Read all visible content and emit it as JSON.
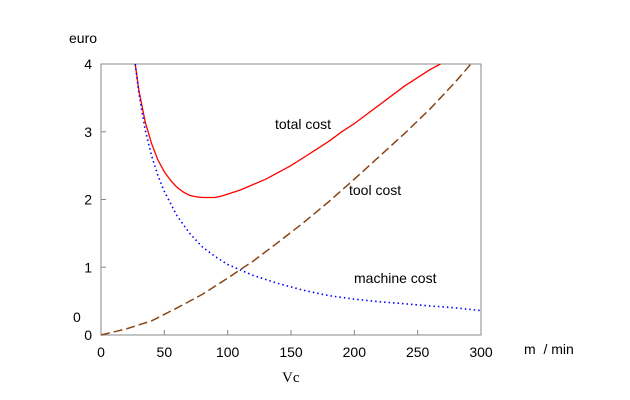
{
  "chart_data": {
    "type": "line",
    "ylabel": "euro",
    "xlabel": "m  / min",
    "xvar": "Vc",
    "stray_label": "0",
    "xlim": [
      0,
      300
    ],
    "ylim": [
      0,
      4
    ],
    "x_ticks": [
      0,
      50,
      100,
      150,
      200,
      250,
      300
    ],
    "y_ticks": [
      0,
      1,
      2,
      3,
      4
    ],
    "grid": false,
    "series": [
      {
        "name": "total cost",
        "color": "#ff0000",
        "style": "solid",
        "x": [
          27,
          30,
          35,
          40,
          45,
          50,
          55,
          60,
          65,
          70,
          75,
          80,
          85,
          90,
          95,
          100,
          110,
          120,
          130,
          140,
          150,
          160,
          170,
          180,
          190,
          200,
          210,
          220,
          230,
          240,
          250,
          260,
          268
        ],
        "y": [
          4.0,
          3.6,
          3.14,
          2.82,
          2.58,
          2.41,
          2.28,
          2.18,
          2.11,
          2.06,
          2.04,
          2.03,
          2.03,
          2.03,
          2.05,
          2.08,
          2.14,
          2.22,
          2.3,
          2.4,
          2.5,
          2.62,
          2.74,
          2.86,
          3.0,
          3.12,
          3.26,
          3.4,
          3.54,
          3.68,
          3.8,
          3.92,
          4.0
        ]
      },
      {
        "name": "tool cost",
        "color": "#8b4513",
        "style": "dashed",
        "x": [
          0,
          20,
          40,
          60,
          80,
          100,
          120,
          140,
          160,
          180,
          200,
          220,
          240,
          260,
          280,
          292
        ],
        "y": [
          0.0,
          0.09,
          0.21,
          0.4,
          0.6,
          0.84,
          1.09,
          1.37,
          1.66,
          1.97,
          2.3,
          2.64,
          2.98,
          3.34,
          3.74,
          4.0
        ]
      },
      {
        "name": "machine cost",
        "color": "#0000ff",
        "style": "dotted",
        "x": [
          27,
          30,
          35,
          40,
          45,
          50,
          60,
          70,
          80,
          90,
          100,
          120,
          140,
          160,
          180,
          200,
          220,
          240,
          260,
          280,
          300
        ],
        "y": [
          4.0,
          3.56,
          3.02,
          2.64,
          2.35,
          2.12,
          1.76,
          1.5,
          1.3,
          1.16,
          1.04,
          0.88,
          0.76,
          0.66,
          0.58,
          0.53,
          0.49,
          0.46,
          0.43,
          0.4,
          0.36
        ]
      }
    ]
  }
}
